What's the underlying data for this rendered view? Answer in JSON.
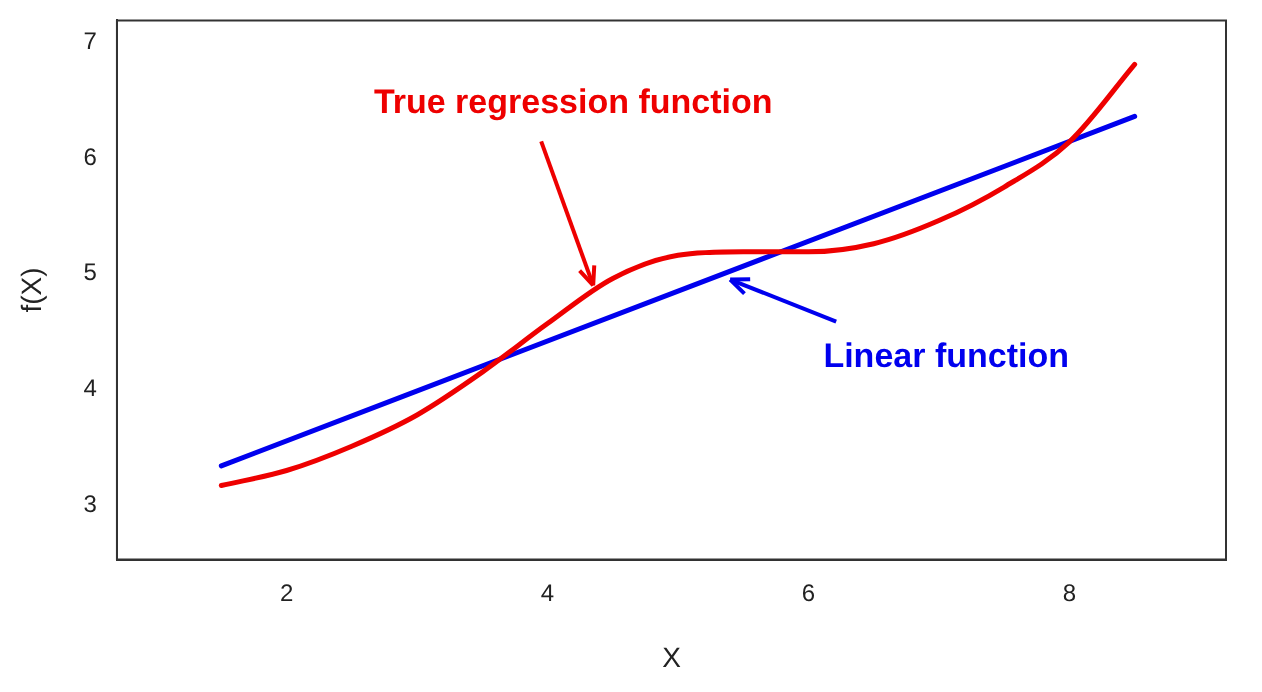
{
  "chart_data": {
    "type": "line",
    "xlabel": "X",
    "ylabel": "f(X)",
    "xlim": [
      0.7,
      9.2
    ],
    "ylim": [
      2.53,
      7.19
    ],
    "xticks": [
      2,
      4,
      6,
      8
    ],
    "yticks": [
      3,
      4,
      5,
      6,
      7
    ],
    "grid": false,
    "legend": false,
    "marker": "none",
    "line_style": "solid",
    "series": [
      {
        "color": "#ee0000",
        "x": [
          1.5,
          2,
          2.5,
          3,
          3.5,
          4,
          4.5,
          5,
          5.5,
          6,
          6.5,
          7,
          7.5,
          8,
          8.5
        ],
        "values": [
          3.17,
          3.3,
          3.51,
          3.78,
          4.15,
          4.57,
          4.96,
          5.16,
          5.19,
          5.19,
          5.26,
          5.46,
          5.75,
          6.14,
          6.81
        ]
      },
      {
        "color": "#0000ee",
        "x": [
          1.5,
          8.5
        ],
        "values": [
          3.34,
          6.36
        ]
      }
    ],
    "annotations": [
      {
        "text": "True regression function",
        "x": 4.35,
        "y": 4.9
      },
      {
        "text": "Linear function",
        "x": 5.4,
        "y": 4.95
      }
    ]
  }
}
